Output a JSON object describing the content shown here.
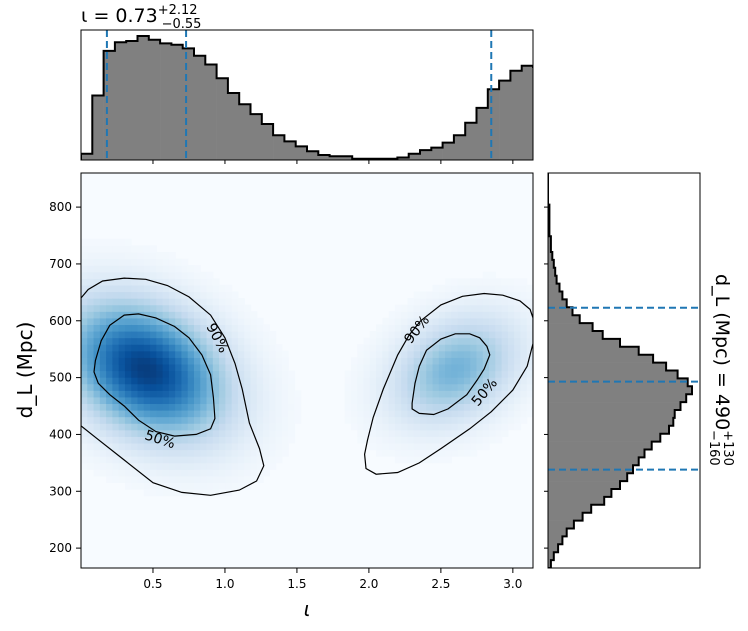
{
  "chart_data": {
    "type": "corner",
    "joint": {
      "type": "heatmap",
      "xlabel": "ι",
      "ylabel": "d_L (Mpc)",
      "xlim": [
        0.0,
        3.14
      ],
      "ylim": [
        165,
        860
      ],
      "xticks": [
        0.5,
        1.0,
        1.5,
        2.0,
        2.5,
        3.0
      ],
      "xtick_labels": [
        "0.5",
        "1.0",
        "1.5",
        "2.0",
        "2.5",
        "3.0"
      ],
      "yticks": [
        200,
        300,
        400,
        500,
        600,
        700,
        800
      ],
      "ytick_labels": [
        "200",
        "300",
        "400",
        "500",
        "600",
        "700",
        "800"
      ],
      "colormap": "Blues",
      "modes": [
        {
          "x": 0.45,
          "y": 515,
          "sx": 0.35,
          "sy": 75,
          "corr": -0.3,
          "weight": 1.0
        },
        {
          "x": 2.6,
          "y": 515,
          "sx": 0.28,
          "sy": 60,
          "corr": 0.3,
          "weight": 0.45
        }
      ],
      "contours": [
        {
          "level": "90%",
          "label_text": "90%",
          "label_pos": [
            [
              0.95,
              570
            ],
            [
              2.33,
              585
            ]
          ]
        },
        {
          "level": "50%",
          "label_text": "50%",
          "label_pos": [
            [
              0.55,
              392
            ],
            [
              2.8,
              475
            ]
          ]
        }
      ],
      "contour_90_left": [
        [
          0.0,
          640
        ],
        [
          0.05,
          655
        ],
        [
          0.15,
          670
        ],
        [
          0.3,
          675
        ],
        [
          0.45,
          673
        ],
        [
          0.6,
          662
        ],
        [
          0.75,
          642
        ],
        [
          0.9,
          610
        ],
        [
          1.0,
          570
        ],
        [
          1.07,
          525
        ],
        [
          1.12,
          480
        ],
        [
          1.17,
          420
        ],
        [
          1.24,
          375
        ],
        [
          1.27,
          345
        ],
        [
          1.22,
          318
        ],
        [
          1.1,
          302
        ],
        [
          0.9,
          293
        ],
        [
          0.7,
          298
        ],
        [
          0.5,
          315
        ],
        [
          0.3,
          355
        ],
        [
          0.1,
          395
        ],
        [
          0.0,
          415
        ]
      ],
      "contour_90_right": [
        [
          1.97,
          365
        ],
        [
          1.99,
          390
        ],
        [
          2.03,
          430
        ],
        [
          2.1,
          480
        ],
        [
          2.2,
          540
        ],
        [
          2.28,
          575
        ],
        [
          2.36,
          600
        ],
        [
          2.5,
          628
        ],
        [
          2.65,
          643
        ],
        [
          2.8,
          648
        ],
        [
          2.93,
          645
        ],
        [
          3.05,
          635
        ],
        [
          3.12,
          620
        ],
        [
          3.14,
          605
        ],
        [
          3.14,
          560
        ],
        [
          3.1,
          520
        ],
        [
          3.0,
          478
        ],
        [
          2.85,
          440
        ],
        [
          2.7,
          410
        ],
        [
          2.5,
          375
        ],
        [
          2.35,
          350
        ],
        [
          2.2,
          333
        ],
        [
          2.05,
          330
        ],
        [
          1.98,
          340
        ]
      ],
      "contour_50_left": [
        [
          0.1,
          530
        ],
        [
          0.14,
          565
        ],
        [
          0.2,
          592
        ],
        [
          0.3,
          610
        ],
        [
          0.4,
          612
        ],
        [
          0.52,
          605
        ],
        [
          0.65,
          590
        ],
        [
          0.75,
          570
        ],
        [
          0.84,
          540
        ],
        [
          0.9,
          505
        ],
        [
          0.92,
          465
        ],
        [
          0.93,
          428
        ],
        [
          0.9,
          410
        ],
        [
          0.8,
          400
        ],
        [
          0.65,
          397
        ],
        [
          0.52,
          405
        ],
        [
          0.4,
          425
        ],
        [
          0.3,
          450
        ],
        [
          0.2,
          470
        ],
        [
          0.12,
          490
        ],
        [
          0.09,
          510
        ]
      ],
      "contour_50_right": [
        [
          2.3,
          455
        ],
        [
          2.32,
          490
        ],
        [
          2.35,
          520
        ],
        [
          2.4,
          548
        ],
        [
          2.5,
          568
        ],
        [
          2.6,
          577
        ],
        [
          2.7,
          577
        ],
        [
          2.77,
          570
        ],
        [
          2.82,
          555
        ],
        [
          2.84,
          540
        ],
        [
          2.8,
          515
        ],
        [
          2.75,
          495
        ],
        [
          2.68,
          470
        ],
        [
          2.55,
          445
        ],
        [
          2.45,
          435
        ],
        [
          2.35,
          437
        ],
        [
          2.3,
          445
        ]
      ]
    },
    "top_histogram": {
      "type": "histogram",
      "title": "ι = 0.73",
      "title_sup": "+2.12",
      "title_sub": "−0.55",
      "bin_edges_start": 0.0,
      "bin_width": 0.0785,
      "counts": [
        0.05,
        0.52,
        0.88,
        0.95,
        0.96,
        1.0,
        0.97,
        0.94,
        0.93,
        0.9,
        0.84,
        0.77,
        0.66,
        0.54,
        0.45,
        0.37,
        0.29,
        0.2,
        0.15,
        0.11,
        0.07,
        0.04,
        0.03,
        0.03,
        0.01,
        0.01,
        0.01,
        0.01,
        0.02,
        0.05,
        0.08,
        0.1,
        0.14,
        0.2,
        0.3,
        0.42,
        0.57,
        0.64,
        0.72,
        0.76,
        0.75,
        0.74,
        0.72,
        0.65,
        0.58,
        0.46,
        0.36,
        0.2,
        0.06,
        0.02
      ],
      "quantiles": [
        0.18,
        0.73,
        2.85
      ],
      "fill_color": "#808080",
      "quantile_color": "#1f77b4"
    },
    "right_histogram": {
      "type": "histogram",
      "orientation": "horizontal",
      "title": "d_L (Mpc) = 490",
      "title_sup": "+130",
      "title_sub": "−160",
      "bin_edges_start": 165,
      "bin_width": 13.9,
      "counts": [
        0.02,
        0.04,
        0.07,
        0.1,
        0.13,
        0.18,
        0.24,
        0.3,
        0.39,
        0.44,
        0.5,
        0.55,
        0.59,
        0.63,
        0.67,
        0.72,
        0.78,
        0.84,
        0.87,
        0.88,
        0.92,
        0.96,
        1.0,
        0.97,
        0.9,
        0.82,
        0.73,
        0.63,
        0.5,
        0.38,
        0.31,
        0.22,
        0.17,
        0.13,
        0.1,
        0.08,
        0.06,
        0.05,
        0.04,
        0.03,
        0.02,
        0.02,
        0.01,
        0.01,
        0.01,
        0.01,
        0.0,
        0.0,
        0.0,
        0.0
      ],
      "quantiles": [
        338,
        493,
        623
      ],
      "fill_color": "#808080",
      "quantile_color": "#1f77b4"
    }
  }
}
